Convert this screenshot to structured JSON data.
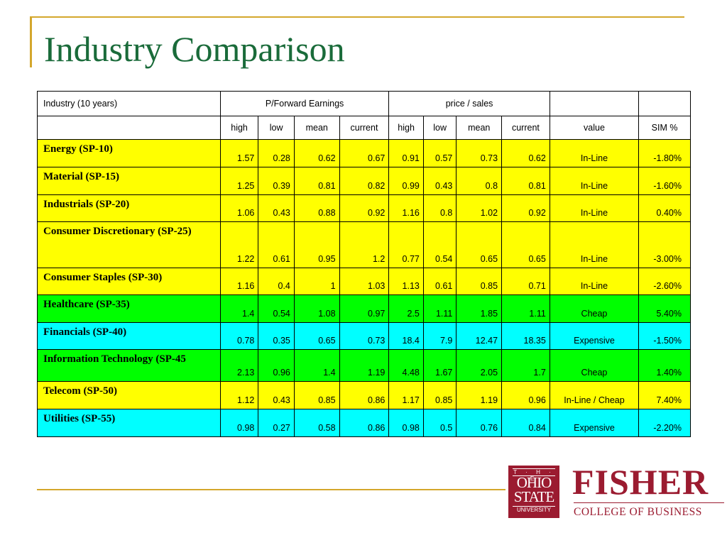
{
  "slide": {
    "title": "Industry Comparison"
  },
  "colors": {
    "accent_rule": "#d4a72c",
    "title_green": "#1a6b3a",
    "row_yellow": "#ffff00",
    "row_green": "#00ff00",
    "row_cyan": "#00ffff",
    "brand_red": "#9b1b30"
  },
  "table": {
    "header": {
      "industry": "Industry (10 years)",
      "pe_group": "P/Forward Earnings",
      "ps_group": "price / sales"
    },
    "subheader": [
      "high",
      "low",
      "mean",
      "current",
      "high",
      "low",
      "mean",
      "current",
      "value",
      "SIM %"
    ],
    "rows": [
      {
        "name": "Energy (SP-10)",
        "color": "#ffff00",
        "cells": [
          "1.57",
          "0.28",
          "0.62",
          "0.67",
          "0.91",
          "0.57",
          "0.73",
          "0.62",
          "In-Line",
          "-1.80%"
        ]
      },
      {
        "name": "Material (SP-15)",
        "color": "#ffff00",
        "cells": [
          "1.25",
          "0.39",
          "0.81",
          "0.82",
          "0.99",
          "0.43",
          "0.8",
          "0.81",
          "In-Line",
          "-1.60%"
        ]
      },
      {
        "name": "Industrials (SP-20)",
        "color": "#ffff00",
        "cells": [
          "1.06",
          "0.43",
          "0.88",
          "0.92",
          "1.16",
          "0.8",
          "1.02",
          "0.92",
          "In-Line",
          "0.40%"
        ]
      },
      {
        "name": "Consumer Discretionary (SP-25)",
        "color": "#ffff00",
        "cells": [
          "1.22",
          "0.61",
          "0.95",
          "1.2",
          "0.77",
          "0.54",
          "0.65",
          "0.65",
          "In-Line",
          "-3.00%"
        ]
      },
      {
        "name": "Consumer Staples (SP-30)",
        "color": "#ffff00",
        "cells": [
          "1.16",
          "0.4",
          "1",
          "1.03",
          "1.13",
          "0.61",
          "0.85",
          "0.71",
          "In-Line",
          "-2.60%"
        ]
      },
      {
        "name": "Healthcare (SP-35)",
        "color": "#00ff00",
        "cells": [
          "1.4",
          "0.54",
          "1.08",
          "0.97",
          "2.5",
          "1.11",
          "1.85",
          "1.11",
          "Cheap",
          "5.40%"
        ]
      },
      {
        "name": "Financials (SP-40)",
        "color": "#00ffff",
        "cells": [
          "0.78",
          "0.35",
          "0.65",
          "0.73",
          "18.4",
          "7.9",
          "12.47",
          "18.35",
          "Expensive",
          "-1.50%"
        ]
      },
      {
        "name": "Information Technology (SP-45",
        "color": "#00ff00",
        "cells": [
          "2.13",
          "0.96",
          "1.4",
          "1.19",
          "4.48",
          "1.67",
          "2.05",
          "1.7",
          "Cheap",
          "1.40%"
        ]
      },
      {
        "name": "Telecom (SP-50)",
        "color": "#ffff00",
        "cells": [
          "1.12",
          "0.43",
          "0.85",
          "0.86",
          "1.17",
          "0.85",
          "1.19",
          "0.96",
          "In-Line / Cheap",
          "7.40%"
        ]
      },
      {
        "name": "Utilities (SP-55)",
        "color": "#00ffff",
        "cells": [
          "0.98",
          "0.27",
          "0.58",
          "0.86",
          "0.98",
          "0.5",
          "0.76",
          "0.84",
          "Expensive",
          "-2.20%"
        ]
      }
    ]
  },
  "logos": {
    "osu_top": "T · H · E",
    "osu_line1": "OHIO",
    "osu_line2": "STATE",
    "osu_bottom": "UNIVERSITY",
    "fisher": "FISHER",
    "college": "COLLEGE OF BUSINESS"
  }
}
